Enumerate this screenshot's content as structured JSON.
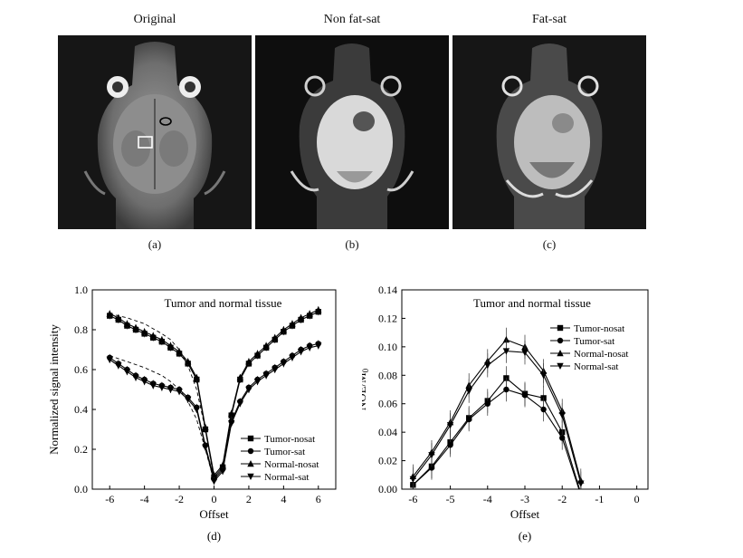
{
  "images": [
    {
      "title": "Original",
      "tag": "(a)"
    },
    {
      "title": "Non fat-sat",
      "tag": "(b)"
    },
    {
      "title": "Fat-sat",
      "tag": "(c)"
    }
  ],
  "chart_data": [
    {
      "type": "line",
      "tag": "(d)",
      "title": "Tumor and normal tissue",
      "xlabel": "Offset",
      "ylabel": "Normalized signal intensity",
      "xlim": [
        -7,
        7
      ],
      "ylim": [
        0,
        1.0
      ],
      "xticks": [
        -6,
        -4,
        -2,
        0,
        2,
        4,
        6
      ],
      "yticks": [
        0,
        0.2,
        0.4,
        0.6,
        0.8,
        1.0
      ],
      "grid": false,
      "legend": "bottom-right",
      "x": [
        -6,
        -5.5,
        -5,
        -4.5,
        -4,
        -3.5,
        -3,
        -2.5,
        -2,
        -1.5,
        -1,
        -0.5,
        0,
        0.5,
        1,
        1.5,
        2,
        2.5,
        3,
        3.5,
        4,
        4.5,
        5,
        5.5,
        6
      ],
      "series": [
        {
          "name": "Tumor-nosat",
          "marker": "square",
          "values": [
            0.87,
            0.85,
            0.82,
            0.8,
            0.78,
            0.76,
            0.74,
            0.71,
            0.68,
            0.63,
            0.55,
            0.3,
            0.06,
            0.11,
            0.37,
            0.55,
            0.63,
            0.67,
            0.71,
            0.75,
            0.79,
            0.82,
            0.85,
            0.87,
            0.89
          ]
        },
        {
          "name": "Tumor-sat",
          "marker": "circle",
          "values": [
            0.66,
            0.63,
            0.6,
            0.57,
            0.55,
            0.53,
            0.52,
            0.51,
            0.5,
            0.46,
            0.41,
            0.22,
            0.05,
            0.1,
            0.34,
            0.44,
            0.51,
            0.55,
            0.58,
            0.61,
            0.64,
            0.67,
            0.7,
            0.72,
            0.73
          ]
        },
        {
          "name": "Normal-nosat",
          "marker": "triangle-up",
          "values": [
            0.88,
            0.86,
            0.83,
            0.81,
            0.79,
            0.77,
            0.75,
            0.72,
            0.69,
            0.64,
            0.56,
            0.31,
            0.07,
            0.12,
            0.38,
            0.56,
            0.64,
            0.68,
            0.72,
            0.76,
            0.8,
            0.83,
            0.86,
            0.88,
            0.9
          ]
        },
        {
          "name": "Normal-sat",
          "marker": "triangle-down",
          "values": [
            0.65,
            0.62,
            0.59,
            0.56,
            0.54,
            0.52,
            0.51,
            0.5,
            0.49,
            0.45,
            0.4,
            0.21,
            0.04,
            0.09,
            0.33,
            0.43,
            0.5,
            0.54,
            0.57,
            0.6,
            0.63,
            0.66,
            0.69,
            0.71,
            0.72
          ]
        }
      ],
      "fits": [
        {
          "x": [
            -6,
            -5,
            -4,
            -3,
            -2.5,
            -2,
            -1.5,
            -1,
            -0.5,
            0
          ],
          "values": [
            0.88,
            0.86,
            0.83,
            0.78,
            0.75,
            0.7,
            0.62,
            0.5,
            0.3,
            0.05
          ]
        },
        {
          "x": [
            -6,
            -5,
            -4,
            -3,
            -2.5,
            -2,
            -1.5,
            -1,
            -0.5,
            0
          ],
          "values": [
            0.67,
            0.64,
            0.61,
            0.57,
            0.54,
            0.5,
            0.44,
            0.35,
            0.2,
            0.04
          ]
        }
      ]
    },
    {
      "type": "line",
      "tag": "(e)",
      "title": "Tumor and normal tissue",
      "xlabel": "Offset",
      "ylabel": "NOE/M",
      "ylabel_sub": "0",
      "xlim": [
        -6.3,
        0.3
      ],
      "ylim": [
        0,
        0.14
      ],
      "xticks": [
        -6,
        -5,
        -4,
        -3,
        -2,
        -1,
        0
      ],
      "yticks": [
        0,
        0.02,
        0.04,
        0.06,
        0.08,
        0.1,
        0.12,
        0.14
      ],
      "grid": false,
      "legend": "top-right",
      "x": [
        -6,
        -5.5,
        -5,
        -4.5,
        -4,
        -3.5,
        -3,
        -2.5,
        -2,
        -1.5
      ],
      "series": [
        {
          "name": "Tumor-nosat",
          "marker": "square",
          "values": [
            0.003,
            0.016,
            0.033,
            0.05,
            0.062,
            0.078,
            0.067,
            0.064,
            0.04,
            -0.003
          ]
        },
        {
          "name": "Tumor-sat",
          "marker": "circle",
          "values": [
            0.003,
            0.015,
            0.031,
            0.049,
            0.06,
            0.07,
            0.066,
            0.056,
            0.036,
            -0.004
          ]
        },
        {
          "name": "Normal-nosat",
          "marker": "triangle-up",
          "values": [
            0.009,
            0.026,
            0.047,
            0.073,
            0.09,
            0.105,
            0.1,
            0.083,
            0.055,
            0.006
          ]
        },
        {
          "name": "Normal-sat",
          "marker": "triangle-down",
          "values": [
            0.007,
            0.024,
            0.045,
            0.069,
            0.087,
            0.097,
            0.096,
            0.08,
            0.052,
            0.004
          ]
        }
      ]
    }
  ]
}
